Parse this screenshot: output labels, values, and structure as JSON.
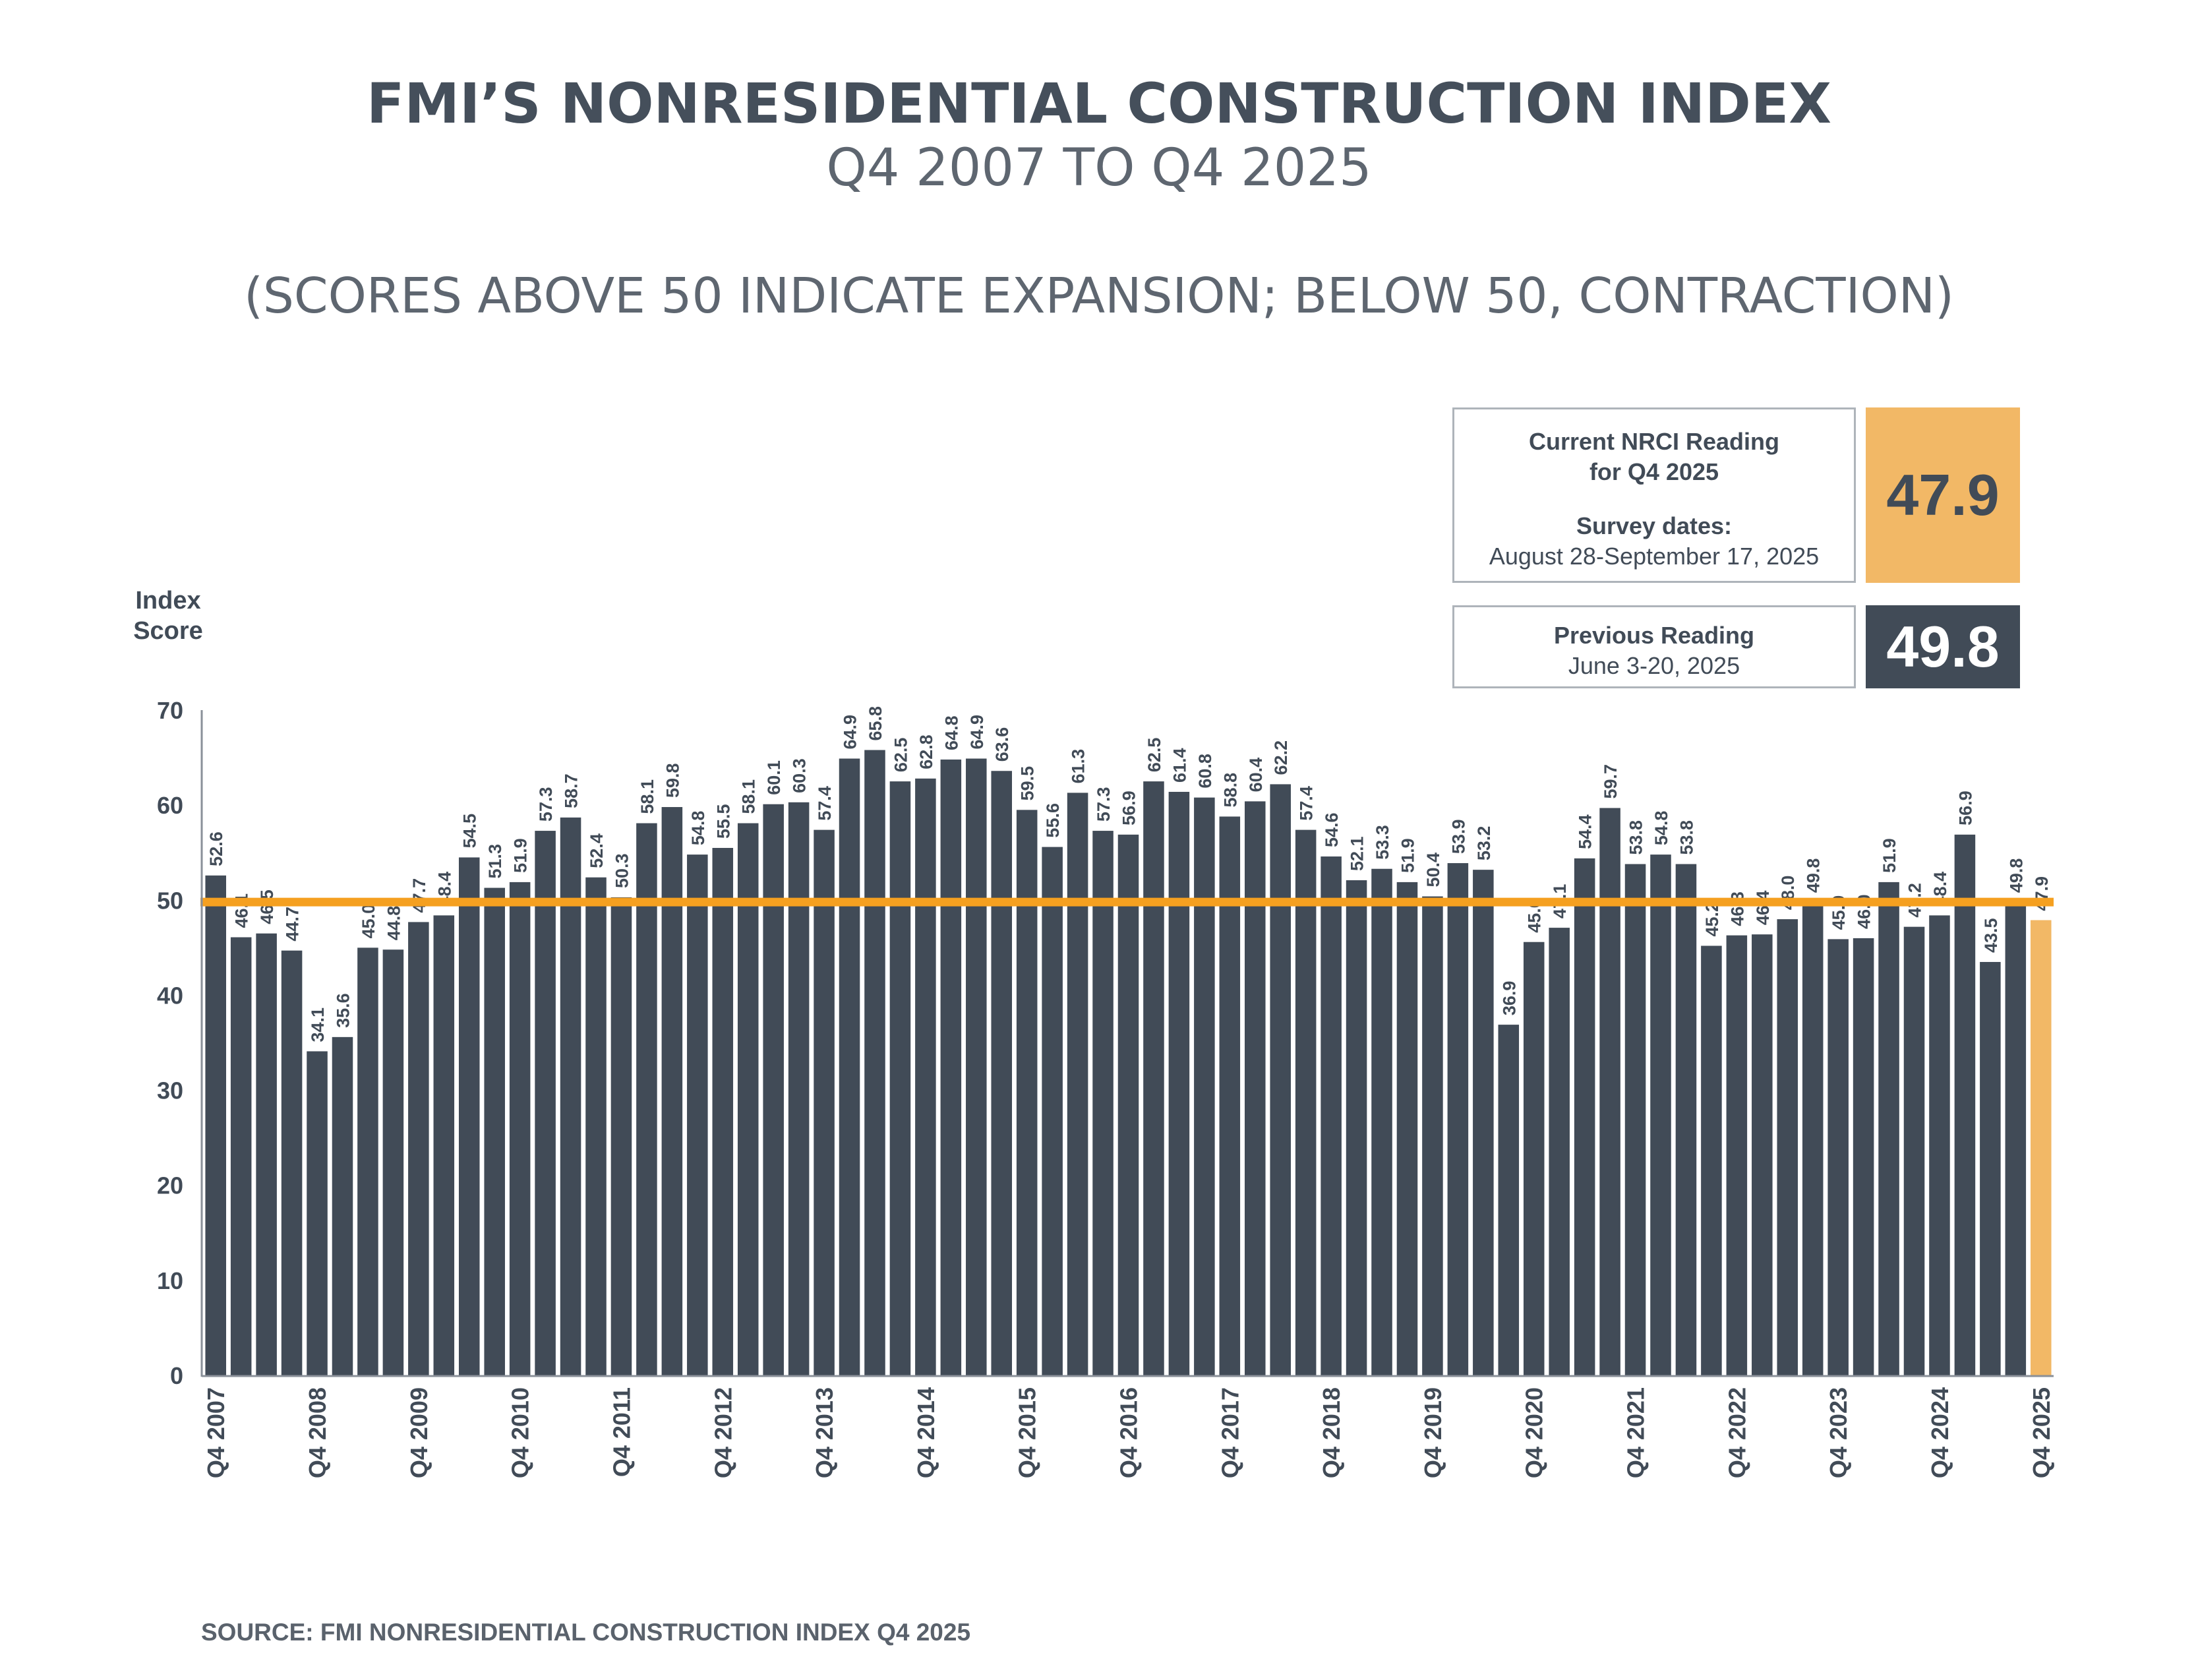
{
  "header": {
    "title": "FMI’S NONRESIDENTIAL CONSTRUCTION INDEX",
    "subtitle": "Q4 2007 TO Q4 2025",
    "note": "(SCORES ABOVE 50 INDICATE EXPANSION; BELOW 50, CONTRACTION)"
  },
  "current_box": {
    "line1": "Current NRCI Reading",
    "line2": "for Q4 2025",
    "line3": "Survey dates:",
    "line4": "August 28-September 17, 2025",
    "value": "47.9"
  },
  "previous_box": {
    "line1": "Previous Reading",
    "line2": "June 3-20, 2025",
    "value": "49.8"
  },
  "source": "SOURCE: FMI NONRESIDENTIAL CONSTRUCTION INDEX Q4 2025",
  "colors": {
    "bar": "#414b57",
    "highlight": "#f2b866",
    "reference_line": "#f5a020",
    "previous_box_bg": "#414b57"
  },
  "chart_data": {
    "type": "bar",
    "ylabel": "Index Score",
    "ylim": [
      0,
      70
    ],
    "yticks": [
      0,
      10,
      20,
      30,
      40,
      50,
      60,
      70
    ],
    "reference_line": 49.8,
    "xtick_labels": [
      {
        "index": 0,
        "label": "Q4 2007"
      },
      {
        "index": 4,
        "label": "Q4 2008"
      },
      {
        "index": 8,
        "label": "Q4 2009"
      },
      {
        "index": 12,
        "label": "Q4 2010"
      },
      {
        "index": 16,
        "label": "Q4 2011"
      },
      {
        "index": 20,
        "label": "Q4 2012"
      },
      {
        "index": 24,
        "label": "Q4 2013"
      },
      {
        "index": 28,
        "label": "Q4 2014"
      },
      {
        "index": 32,
        "label": "Q4 2015"
      },
      {
        "index": 36,
        "label": "Q4 2016"
      },
      {
        "index": 40,
        "label": "Q4 2017"
      },
      {
        "index": 44,
        "label": "Q4 2018"
      },
      {
        "index": 48,
        "label": "Q4 2019"
      },
      {
        "index": 52,
        "label": "Q4 2020"
      },
      {
        "index": 56,
        "label": "Q4 2021"
      },
      {
        "index": 60,
        "label": "Q4 2022"
      },
      {
        "index": 64,
        "label": "Q4 2023"
      },
      {
        "index": 68,
        "label": "Q4 2024"
      },
      {
        "index": 72,
        "label": "Q4 2025"
      }
    ],
    "values": [
      52.6,
      46.1,
      46.5,
      44.7,
      34.1,
      35.6,
      45.0,
      44.8,
      47.7,
      48.4,
      54.5,
      51.3,
      51.9,
      57.3,
      58.7,
      52.4,
      50.3,
      58.1,
      59.8,
      54.8,
      55.5,
      58.1,
      60.1,
      60.3,
      57.4,
      64.9,
      65.8,
      62.5,
      62.8,
      64.8,
      64.9,
      63.6,
      59.5,
      55.6,
      61.3,
      57.3,
      56.9,
      62.5,
      61.4,
      60.8,
      58.8,
      60.4,
      62.2,
      57.4,
      54.6,
      52.1,
      53.3,
      51.9,
      50.4,
      53.9,
      53.2,
      36.9,
      45.6,
      47.1,
      54.4,
      59.7,
      53.8,
      54.8,
      53.8,
      45.2,
      46.3,
      46.4,
      48.0,
      49.8,
      45.9,
      46.0,
      51.9,
      47.2,
      48.4,
      56.9,
      43.5,
      49.8,
      47.9
    ],
    "value_labels": [
      "52.6",
      "46.1",
      "46.5",
      "44.7",
      "34.1",
      "35.6",
      "45.0",
      "44.8",
      "47.7",
      "48.4",
      "54.5",
      "51.3",
      "51.9",
      "57.3",
      "58.7",
      "52.4",
      "50.3",
      "58.1",
      "59.8",
      "54.8",
      "55.5",
      "58.1",
      "60.1",
      "60.3",
      "57.4",
      "64.9",
      "65.8",
      "62.5",
      "62.8",
      "64.8",
      "64.9",
      "63.6",
      "59.5",
      "55.6",
      "61.3",
      "57.3",
      "56.9",
      "62.5",
      "61.4",
      "60.8",
      "58.8",
      "60.4",
      "62.2",
      "57.4",
      "54.6",
      "52.1",
      "53.3",
      "51.9",
      "50.4",
      "53.9",
      "53.2",
      "36.9",
      "45.6",
      "47.1",
      "54.4",
      "59.7",
      "53.8",
      "54.8",
      "53.8",
      "45.2",
      "46.3",
      "46.4",
      "48.0",
      "49.8",
      "45.9",
      "46.0",
      "51.9",
      "47.2",
      "48.4",
      "56.9",
      "43.5",
      "49.8",
      "47.9"
    ],
    "highlight_index": 72
  }
}
